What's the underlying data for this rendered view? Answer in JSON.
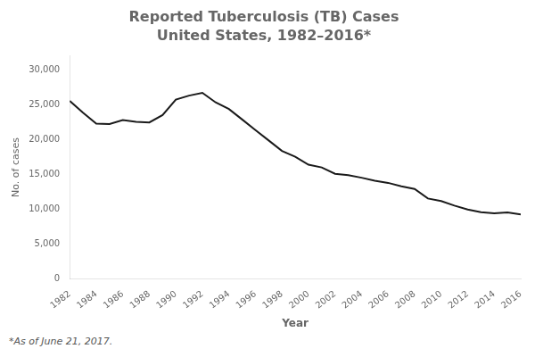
{
  "chart_data": {
    "type": "line",
    "title": "Reported Tuberculosis (TB) Cases",
    "subtitle": "United States, 1982–2016*",
    "x_label": "Year",
    "y_label": "No. of cases",
    "annotations": [
      "*As of June 21, 2017."
    ],
    "x": [
      1982,
      1983,
      1984,
      1985,
      1986,
      1987,
      1988,
      1989,
      1990,
      1991,
      1992,
      1993,
      1994,
      1995,
      1996,
      1997,
      1998,
      1999,
      2000,
      2001,
      2002,
      2003,
      2004,
      2005,
      2006,
      2007,
      2008,
      2009,
      2010,
      2011,
      2012,
      2013,
      2014,
      2015,
      2016
    ],
    "values": [
      25520,
      23846,
      22255,
      22201,
      22768,
      22517,
      22436,
      23495,
      25701,
      26283,
      26673,
      25313,
      24361,
      22860,
      21337,
      19855,
      18361,
      17531,
      16377,
      15989,
      15078,
      14871,
      14517,
      14093,
      13779,
      13293,
      12904,
      11540,
      11182,
      10521,
      9951,
      9588,
      9412,
      9557,
      9272
    ],
    "color": "#1a1a1a",
    "xlim": [
      1982,
      2016
    ],
    "xticks": [
      1982,
      1984,
      1986,
      1988,
      1990,
      1992,
      1994,
      1996,
      1998,
      2000,
      2002,
      2004,
      2006,
      2008,
      2010,
      2012,
      2014,
      2016
    ],
    "ylim": [
      0,
      32000
    ],
    "yticks": [
      0,
      {
        "value": 5000,
        "label": "5,000"
      },
      {
        "value": 10000,
        "label": "10,000"
      },
      {
        "value": 15000,
        "label": "15,000"
      },
      {
        "value": 20000,
        "label": "20,000"
      },
      {
        "value": 25000,
        "label": "25,000"
      },
      {
        "value": 30000,
        "label": "30,000"
      }
    ],
    "grid": false
  }
}
